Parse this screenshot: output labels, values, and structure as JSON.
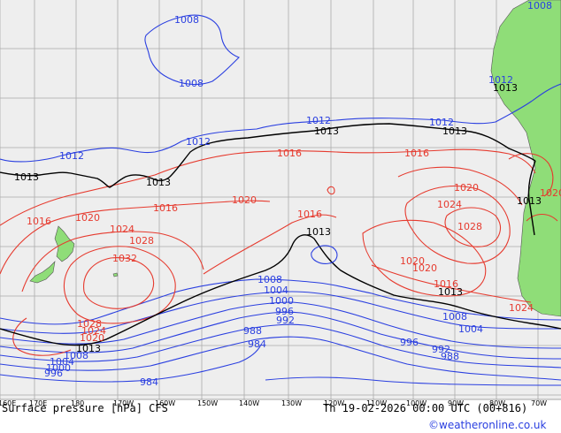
{
  "map": {
    "title": "Surface pressure [hPa] CFS",
    "valid_time": "Th 19-02-2026 00:00 UTC (00+816)",
    "credit": "©weatheronline.co.uk",
    "longitude_ticks": [
      "160E",
      "170E",
      "180",
      "170W",
      "160W",
      "150W",
      "140W",
      "130W",
      "120W",
      "110W",
      "100W",
      "90W",
      "80W",
      "70W"
    ],
    "colors": {
      "ocean": "#eeeeee",
      "land": "#8fdd78",
      "grid": "#aaaaaa",
      "low_isobar": "#2a3fe0",
      "high_isobar": "#e63a2e",
      "standard_isobar": "#000000"
    },
    "isobar_labels": {
      "l1008a": "1008",
      "l1008b": "1008",
      "l1008c": "1008",
      "l1012a": "1012",
      "l1012b": "1012",
      "l1012c": "1012",
      "l1012d": "1012",
      "l1012e": "1012",
      "l1013a": "1013",
      "l1013b": "1013",
      "l1013c": "1013",
      "l1013d": "1013",
      "l1013e": "1013",
      "l1013f": "1013",
      "l1013g": "1013",
      "l1013h": "1013",
      "l1013i": "1013",
      "l1016a": "1016",
      "l1016b": "1016",
      "l1016c": "1016",
      "l1016d": "1016",
      "l1016e": "1016",
      "l1016f": "1016",
      "l1020a": "1020",
      "l1020b": "1020",
      "l1020c": "1020",
      "l1020d": "1020",
      "l1020e": "1020",
      "l1020f": "1020",
      "l1024a": "1024",
      "l1024b": "1024",
      "l1024c": "1024",
      "l1024d": "1024",
      "l1028a": "1028",
      "l1028b": "1028",
      "l1028c": "1028",
      "l1032": "1032",
      "l1020g": "1020",
      "l1008d": "1008",
      "l1004a": "1004",
      "l1000": "1000",
      "l996a": "996",
      "l992a": "992",
      "l988": "988",
      "l984a": "984",
      "l984b": "984",
      "l1008e": "1008",
      "l1004b": "1004",
      "l996b": "996",
      "l992b": "992",
      "l988b": "988",
      "l1004c": "1004",
      "l1000b": "1000",
      "l996c": "996",
      "l1008f": "1008"
    }
  }
}
